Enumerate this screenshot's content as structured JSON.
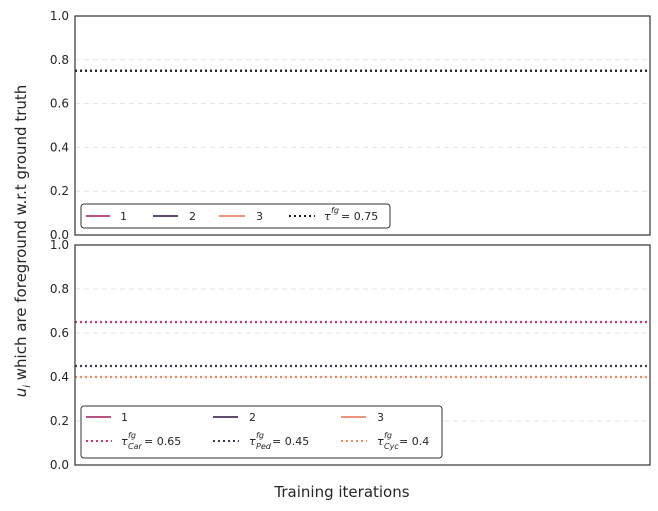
{
  "chart_data": [
    {
      "type": "line",
      "panel": "top",
      "xlabel": "",
      "ylabel": "",
      "ylim": [
        0,
        1.0
      ],
      "yticks": [
        "0.0",
        "0.2",
        "0.4",
        "0.6",
        "0.8",
        "1.0"
      ],
      "grid": "horizontal dashed",
      "legend_position": "lower-left",
      "legend_columns": 4,
      "series": [
        {
          "label": "1",
          "color": "#a3195b",
          "style": "solid",
          "values": []
        },
        {
          "label": "2",
          "color": "#2c0f3f",
          "style": "solid",
          "values": []
        },
        {
          "label": "3",
          "color": "#e8714f",
          "style": "solid",
          "values": []
        }
      ],
      "thresholds": [
        {
          "legend_text": "τ^{fg} = 0.75",
          "value": 0.75,
          "color": "#1a1a1a",
          "style": "dotted"
        }
      ]
    },
    {
      "type": "line",
      "panel": "bottom",
      "xlabel": "Training iterations",
      "ylabel": "",
      "ylim": [
        0,
        1.0
      ],
      "yticks": [
        "0.0",
        "0.2",
        "0.4",
        "0.6",
        "0.8",
        "1.0"
      ],
      "grid": "horizontal dashed",
      "legend_position": "lower-left",
      "legend_columns": 3,
      "series": [
        {
          "label": "1",
          "color": "#a3195b",
          "style": "solid",
          "values": []
        },
        {
          "label": "2",
          "color": "#2c0f3f",
          "style": "solid",
          "values": []
        },
        {
          "label": "3",
          "color": "#e8714f",
          "style": "solid",
          "values": []
        }
      ],
      "thresholds": [
        {
          "legend_text": "τ^{fg}_{Car} = 0.65",
          "value": 0.65,
          "color": "#d6336c",
          "style": "dotted"
        },
        {
          "legend_text": "τ^{fg}_{Ped} = 0.45",
          "value": 0.45,
          "color": "#3f3a4a",
          "style": "dotted"
        },
        {
          "legend_text": "τ^{fg}_{Cyc} = 0.4",
          "value": 0.4,
          "color": "#f08a5d",
          "style": "dotted"
        }
      ]
    }
  ],
  "shared_ylabel": "u_i which are foreground w.r.t ground truth",
  "text": {
    "xlabel": "Training iterations",
    "ylabel_main": " which are foreground w.r.t ground truth",
    "ylabel_var": "u",
    "ylabel_sub": "i",
    "legend_top": {
      "s1": "1",
      "s2": "2",
      "s3": "3",
      "tau_eq": " = 0.75"
    },
    "legend_bottom": {
      "s1": "1",
      "s2": "2",
      "s3": "3",
      "car_sub": "Car",
      "car_eq": " = 0.65",
      "ped_sub": "Ped",
      "ped_eq": " = 0.45",
      "cyc_sub": "Cyc",
      "cyc_eq": " = 0.4"
    },
    "tau": "τ",
    "fg": "fg"
  }
}
